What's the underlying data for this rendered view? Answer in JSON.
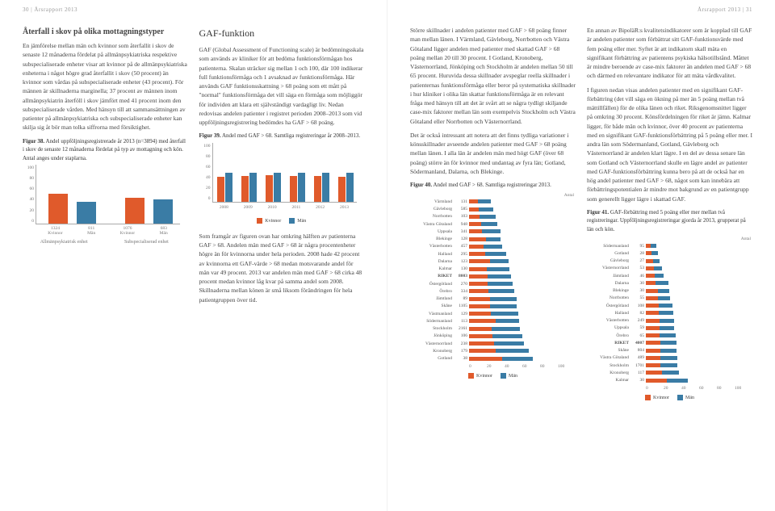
{
  "meta": {
    "left_header": "30 | Årsrapport 2013",
    "right_header": "Årsrapport 2013 | 31"
  },
  "left_page": {
    "title1": "Återfall i skov på olika mottagningstyper",
    "body1": "En jämförelse mellan män och kvinnor som återfallit i skov de senaste 12 månaderna fördelat på allmänpsykiatriska respektive subspecialiserade enheter visar att kvinnor på de allmänpsykiatriska enheterna i något högre grad återfallit i skov (50 procent) än kvinnor som vårdas på subspecialiserade enheter (43 procent). För männen är skillnaderna marginella; 37 procent av männen inom allmänpsykiatrin återföll i skov jämfört med 41 procent inom den subspecialiserade vården. Med hänsyn till att sammansättningen av patienter på allmänpsykiatriska och subspecialiserade enheter kan skilja sig åt bör man tolka siffrorna med försiktighet.",
    "fig38_caption": "Figur 38. Andel uppföljningsregistrerade år 2013 (n=3894) med återfall i skov de senaste 12 månaderna fördelat på typ av mottagning och kön. Antal anges under staplarna.",
    "title2": "GAF-funktion",
    "body2": "GAF (Global Assessment of Functioning scale) är bedömningsskala som används av kliniker för att bedöma funktionsförmågan hos patienterna. Skalan sträcker sig mellan 1 och 100, där 100 indikerar full funktionsförmåga och 1 avsaknad av funktionsförmåga. Här används GAF funktionsskattning > 68 poäng som ett mått på \"normal\" funktionsförmåga det vill säga en förmåga som möjliggör för individen att klara ett självständigt vardagligt liv. Nedan redovisas andelen patienter i registret perioden 2008–2013 som vid uppföljningsregistrering bedömdes ha GAF > 68 poäng.",
    "fig39_caption": "Figur 39. Andel med GAF > 68. Samtliga registreringar år 2008–2013.",
    "body3": "Som framgår av figuren ovan har omkring hälften av patienterna GAF > 68. Andelen män med GAF > 68 är några procentenheter högre än för kvinnorna under hela perioden. 2008 hade 42 procent av kvinnorna ett GAF-värde > 68 medan motsvarande andel för män var 49 procent. 2013 var andelen män med GAF > 68 cirka 48 procent medan kvinnor låg kvar på samma andel som 2008. Skillnaderna mellan könen är små liksom förändringen för hela patientgruppen över tid."
  },
  "right_page": {
    "body1": "Större skillnader i andelen patienter med GAF > 68 poäng finner man mellan länen. I Värmland, Gävleborg, Norrbotten och Västra Götaland ligger andelen med patienter med skattad GAF > 68 poäng mellan 20 till 30 procent. I Gotland, Kronoberg, Västernorrland, Jönköping och Stockholm är andelen mellan 50 till 65 procent. Huruvida dessa skillnader avspeglar reella skillnader i patienternas funktionsförmåga eller beror på systematiska skillnader i hur kliniker i olika län skattar funktionsförmåga är en relevant fråga med hänsyn till att det är svårt att se några tydligt skiljande case-mix faktorer mellan län som exempelvis Stockholm och Västra Götaland eller Norrbotten och Västernorrland.",
    "body2": "Det är också intressant att notera att det finns tydliga variationer i könsskillnader avseende andelen patienter med GAF > 68 poäng mellan länen. I alla län är andelen män med högt GAF (över 68 poäng) större än för kvinnor med undantag av fyra län; Gotland, Södermanland, Dalarna, och Blekinge.",
    "fig40_caption": "Figur 40. Andel med GAF > 68. Samtliga registreringar 2013.",
    "body3": "En annan av BipoläR:s kvalitetsindikatorer som är kopplad till GAF är andelen patienter som förbättrat sitt GAF-funktionsvärde med fem poäng eller mer. Syftet är att indikatorn skall mäta en signifikant förbättring av patientens psykiska hälsotillstånd. Måttet är mindre beroende av case-mix faktorer än andelen med GAF > 68 och därmed en relevantare indikator för att mäta vårdkvalitet.",
    "body4": "I figuren nedan visas andelen patienter med en signifikant GAF-förbättring (det vill säga en ökning på mer än 5 poäng mellan två mättillfällen) för de olika länen och riket. Riksgenomsnittet ligger på omkring 30 procent. Könsfördelningen för riket är jämn. Kalmar ligger, för både män och kvinnor, över 40 procent av patienterna med en signifikant GAF-funktionsförbättring på 5 poäng eller mer. I andra län som Södermanland, Gotland, Gävleborg och Västernorrland är andelen klart lägre. I en del av dessa senare län som Gotland och Västernorrland skulle en lägre andel av patienter med GAF-funktionsförbättring kunna bero på att de också har en hög andel patienter med GAF > 68, något som kan innebära att förbättringspotentialen är mindre mot bakgrund av en patientgrupp som generellt ligger lägre i skattad GAF.",
    "fig41_caption": "Figur 41. GAF-förbättring med 5 poäng eller mer mellan två registreringar. Uppföljningsregistreringar gjorda år 2013, grupperat på län och kön."
  },
  "chart38": {
    "type": "bar",
    "y_ticks": [
      0,
      20,
      40,
      60,
      80,
      100
    ],
    "groups": [
      {
        "label": "1324\nKvinnor",
        "value": 50,
        "color": "#e05a2b"
      },
      {
        "label": "811\nMän",
        "value": 37,
        "color": "#3a7ca5"
      },
      {
        "label": "1076\nKvinnor",
        "value": 43,
        "color": "#e05a2b"
      },
      {
        "label": "683\nMän",
        "value": 41,
        "color": "#3a7ca5"
      }
    ],
    "subheaders": [
      "Allmänpsykiatrisk enhet",
      "Subspecialiserad enhet"
    ],
    "bg": "#ffffff",
    "grid": "#e0e0e0"
  },
  "chart39": {
    "type": "grouped-bar",
    "y_ticks": [
      0,
      20,
      40,
      60,
      80,
      100
    ],
    "years": [
      "2008",
      "2009",
      "2010",
      "2011",
      "2012",
      "2013"
    ],
    "series": [
      {
        "name": "Kvinnor",
        "color": "#e05a2b",
        "values": [
          42,
          43,
          44,
          43,
          43,
          42
        ]
      },
      {
        "name": "Män",
        "color": "#3a7ca5",
        "values": [
          49,
          49,
          49,
          49,
          49,
          48
        ]
      }
    ],
    "bg": "#ffffff"
  },
  "chart40": {
    "type": "h-stacked-bar",
    "max": 100,
    "rows": [
      {
        "label": "Värmland",
        "n": 131,
        "f": 9,
        "m": 13
      },
      {
        "label": "Gävleborg",
        "n": 585,
        "f": 10,
        "m": 15
      },
      {
        "label": "Norrbotten",
        "n": 103,
        "f": 11,
        "m": 16
      },
      {
        "label": "Västra Götaland",
        "n": 948,
        "f": 12,
        "m": 17
      },
      {
        "label": "Uppsala",
        "n": 341,
        "f": 13,
        "m": 19
      },
      {
        "label": "Blekinge",
        "n": 128,
        "f": 17,
        "m": 15
      },
      {
        "label": "Västerbotten",
        "n": 457,
        "f": 15,
        "m": 19
      },
      {
        "label": "Halland",
        "n": 295,
        "f": 16,
        "m": 22
      },
      {
        "label": "Dalarna",
        "n": 123,
        "f": 21,
        "m": 19
      },
      {
        "label": "Kalmar",
        "n": 130,
        "f": 18,
        "m": 23
      },
      {
        "label": "RIKET",
        "n": 8003,
        "f": 19,
        "m": 24
      },
      {
        "label": "Östergötland",
        "n": 270,
        "f": 19,
        "m": 25
      },
      {
        "label": "Örebro",
        "n": 334,
        "f": 20,
        "m": 26
      },
      {
        "label": "Jämtland",
        "n": 89,
        "f": 21,
        "m": 27
      },
      {
        "label": "Skåne",
        "n": 1105,
        "f": 21,
        "m": 27
      },
      {
        "label": "Västmanland",
        "n": 129,
        "f": 22,
        "m": 28
      },
      {
        "label": "Södermanland",
        "n": 113,
        "f": 27,
        "m": 24
      },
      {
        "label": "Stockholm",
        "n": 2161,
        "f": 23,
        "m": 29
      },
      {
        "label": "Jönköping",
        "n": 106,
        "f": 24,
        "m": 30
      },
      {
        "label": "Västernorrland",
        "n": 238,
        "f": 25,
        "m": 31
      },
      {
        "label": "Kronoberg",
        "n": 179,
        "f": 27,
        "m": 34
      },
      {
        "label": "Gotland",
        "n": 38,
        "f": 34,
        "m": 31
      }
    ],
    "x_ticks": [
      0,
      20,
      40,
      60,
      80,
      100
    ],
    "legend": [
      "Kvinnor",
      "Män"
    ]
  },
  "chart41": {
    "type": "h-stacked-bar",
    "max": 100,
    "rows": [
      {
        "label": "Södermanland",
        "n": 95,
        "f": 5,
        "m": 6
      },
      {
        "label": "Gotland",
        "n": 28,
        "f": 6,
        "m": 6
      },
      {
        "label": "Gävleborg",
        "n": 27,
        "f": 7,
        "m": 7
      },
      {
        "label": "Västernorrland",
        "n": 53,
        "f": 8,
        "m": 8
      },
      {
        "label": "Jämtland",
        "n": 46,
        "f": 9,
        "m": 9
      },
      {
        "label": "Dalarna",
        "n": 30,
        "f": 10,
        "m": 13
      },
      {
        "label": "Blekinge",
        "n": 30,
        "f": 12,
        "m": 12
      },
      {
        "label": "Norrbotten",
        "n": 55,
        "f": 12,
        "m": 13
      },
      {
        "label": "Östergötland",
        "n": 108,
        "f": 13,
        "m": 14
      },
      {
        "label": "Halland",
        "n": 82,
        "f": 13,
        "m": 15
      },
      {
        "label": "Västerbotten",
        "n": 249,
        "f": 14,
        "m": 15
      },
      {
        "label": "Uppsala",
        "n": 59,
        "f": 14,
        "m": 15
      },
      {
        "label": "Örebro",
        "n": 65,
        "f": 14,
        "m": 16
      },
      {
        "label": "RIKET",
        "n": 4007,
        "f": 15,
        "m": 16
      },
      {
        "label": "Skåne",
        "n": 804,
        "f": 15,
        "m": 16
      },
      {
        "label": "Västra Götaland",
        "n": 489,
        "f": 15,
        "m": 17
      },
      {
        "label": "Stockholm",
        "n": 1701,
        "f": 15,
        "m": 17
      },
      {
        "label": "Kronoberg",
        "n": 117,
        "f": 16,
        "m": 18
      },
      {
        "label": "Kalmar",
        "n": 30,
        "f": 21,
        "m": 22
      }
    ],
    "x_ticks": [
      0,
      20,
      40,
      60,
      80,
      100
    ],
    "legend": [
      "Kvinnor",
      "Män"
    ]
  },
  "colors": {
    "female": "#e05a2b",
    "male": "#3a7ca5",
    "text": "#444"
  }
}
